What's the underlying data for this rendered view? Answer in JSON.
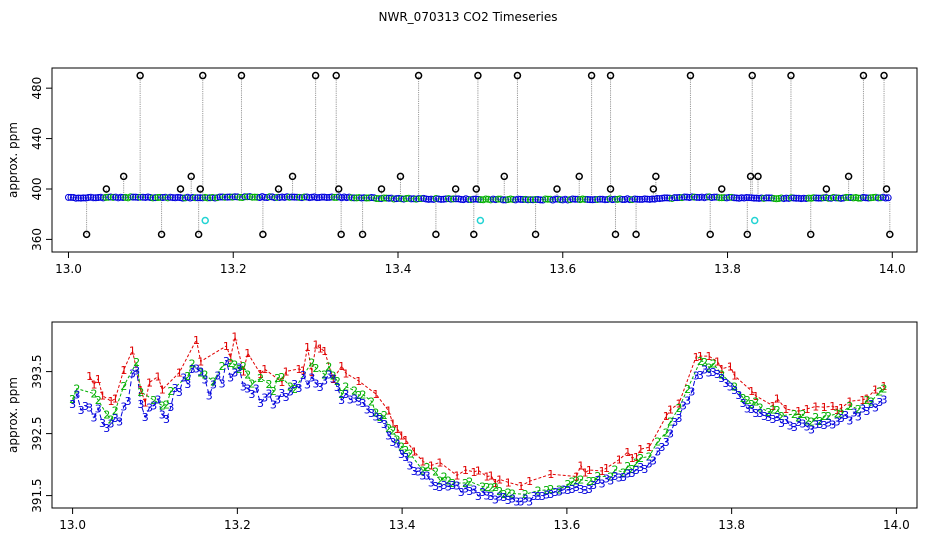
{
  "title": "NWR_070313  CO2 Timeseries",
  "colors": {
    "frame": "#000000",
    "trace_grey": "#9a9a9a",
    "outlier": "#000000",
    "flag_cyan": "#22d3d3",
    "series1": "#e00000",
    "series2": "#00b000",
    "series3": "#0000dd",
    "avg_line": "#0000ff"
  },
  "chart_data": [
    {
      "type": "scatter",
      "name": "top-panel",
      "ylabel": "approx. ppm",
      "xlim": [
        12.98,
        14.03
      ],
      "ylim": [
        350,
        496
      ],
      "xticks": [
        "13.0",
        "13.2",
        "13.4",
        "13.6",
        "13.8",
        "14.0"
      ],
      "xtick_values": [
        13.0,
        13.2,
        13.4,
        13.6,
        13.8,
        14.0
      ],
      "yticks": [
        "360",
        "400",
        "440",
        "480"
      ],
      "ytick_values": [
        360,
        400,
        440,
        480
      ],
      "baseline": [
        [
          13.0,
          393.0
        ],
        [
          13.08,
          393.4
        ],
        [
          13.16,
          393.0
        ],
        [
          13.2,
          393.6
        ],
        [
          13.33,
          393.4
        ],
        [
          13.4,
          392.4
        ],
        [
          13.5,
          391.8
        ],
        [
          13.6,
          391.6
        ],
        [
          13.7,
          392.0
        ],
        [
          13.76,
          393.6
        ],
        [
          13.85,
          392.6
        ],
        [
          13.99,
          393.2
        ]
      ],
      "spike_high_x": [
        13.087,
        13.163,
        13.21,
        13.3,
        13.325,
        13.425,
        13.497,
        13.545,
        13.635,
        13.658,
        13.755,
        13.83,
        13.877,
        13.965,
        13.99
      ],
      "spike_high_y": 490,
      "mid_high_x": [
        13.067,
        13.149,
        13.272,
        13.403,
        13.529,
        13.62,
        13.713,
        13.828,
        13.837,
        13.947
      ],
      "mid_high_y": 410,
      "low_mid_x": [
        13.046,
        13.136,
        13.16,
        13.255,
        13.328,
        13.38,
        13.47,
        13.495,
        13.593,
        13.658,
        13.71,
        13.793,
        13.92,
        13.993
      ],
      "low_mid_y": 400,
      "spike_low_x": [
        13.022,
        13.113,
        13.158,
        13.236,
        13.331,
        13.357,
        13.446,
        13.492,
        13.567,
        13.664,
        13.689,
        13.779,
        13.824,
        13.901,
        13.997
      ],
      "spike_low_y": 364,
      "cyan_points": [
        [
          13.166,
          375
        ],
        [
          13.5,
          375
        ],
        [
          13.833,
          375
        ]
      ]
    },
    {
      "type": "scatter",
      "name": "bottom-panel",
      "ylabel": "approx. ppm",
      "xlim": [
        12.975,
        14.025
      ],
      "ylim": [
        391.3,
        394.3
      ],
      "xticks": [
        "13.0",
        "13.2",
        "13.4",
        "13.6",
        "13.8",
        "14.0"
      ],
      "xtick_values": [
        13.0,
        13.2,
        13.4,
        13.6,
        13.8,
        14.0
      ],
      "yticks": [
        "391.5",
        "392.5",
        "393.5"
      ],
      "ytick_values": [
        391.5,
        392.5,
        393.5
      ],
      "series": [
        {
          "name": "1",
          "label": "1"
        },
        {
          "name": "2",
          "label": "2"
        },
        {
          "name": "3",
          "label": "3"
        }
      ],
      "trend": [
        [
          13.0,
          393.05
        ],
        [
          13.02,
          393.15
        ],
        [
          13.035,
          392.85
        ],
        [
          13.05,
          392.75
        ],
        [
          13.06,
          393.0
        ],
        [
          13.075,
          393.6
        ],
        [
          13.09,
          392.9
        ],
        [
          13.1,
          393.1
        ],
        [
          13.115,
          393.0
        ],
        [
          13.13,
          393.3
        ],
        [
          13.15,
          393.6
        ],
        [
          13.165,
          393.2
        ],
        [
          13.185,
          393.6
        ],
        [
          13.2,
          393.75
        ],
        [
          13.215,
          393.3
        ],
        [
          13.24,
          393.2
        ],
        [
          13.26,
          393.3
        ],
        [
          13.28,
          393.45
        ],
        [
          13.3,
          393.5
        ],
        [
          13.33,
          393.25
        ],
        [
          13.36,
          393.0
        ],
        [
          13.38,
          392.7
        ],
        [
          13.4,
          392.3
        ],
        [
          13.42,
          391.95
        ],
        [
          13.45,
          391.75
        ],
        [
          13.48,
          391.7
        ],
        [
          13.5,
          391.6
        ],
        [
          13.53,
          391.55
        ],
        [
          13.56,
          391.55
        ],
        [
          13.6,
          391.65
        ],
        [
          13.64,
          391.8
        ],
        [
          13.67,
          391.9
        ],
        [
          13.7,
          392.1
        ],
        [
          13.72,
          392.5
        ],
        [
          13.745,
          393.1
        ],
        [
          13.76,
          393.6
        ],
        [
          13.78,
          393.55
        ],
        [
          13.8,
          393.3
        ],
        [
          13.82,
          393.0
        ],
        [
          13.85,
          392.85
        ],
        [
          13.88,
          392.75
        ],
        [
          13.91,
          392.7
        ],
        [
          13.94,
          392.85
        ],
        [
          13.96,
          392.95
        ],
        [
          13.985,
          393.15
        ]
      ]
    }
  ]
}
